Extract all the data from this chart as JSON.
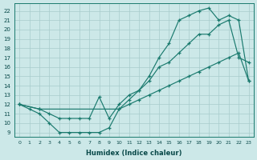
{
  "xlabel": "Humidex (Indice chaleur)",
  "xlim": [
    -0.5,
    23.5
  ],
  "ylim": [
    8.5,
    22.8
  ],
  "xticks": [
    0,
    1,
    2,
    3,
    4,
    5,
    6,
    7,
    8,
    9,
    10,
    11,
    12,
    13,
    14,
    15,
    16,
    17,
    18,
    19,
    20,
    21,
    22,
    23
  ],
  "yticks": [
    9,
    10,
    11,
    12,
    13,
    14,
    15,
    16,
    17,
    18,
    19,
    20,
    21,
    22
  ],
  "bg_color": "#cce8e8",
  "line_color": "#1a7a6e",
  "grid_color": "#a8cccc",
  "line1_x": [
    0,
    1,
    2,
    3,
    4,
    5,
    6,
    7,
    8,
    9,
    10,
    11,
    12,
    13,
    14,
    15,
    16,
    17,
    18,
    19,
    20,
    21,
    22,
    23
  ],
  "line1_y": [
    12.0,
    11.5,
    11.0,
    10.0,
    9.0,
    9.0,
    9.0,
    9.0,
    9.0,
    9.5,
    11.5,
    12.5,
    13.5,
    15.0,
    17.0,
    18.5,
    21.0,
    21.5,
    22.0,
    22.3,
    21.0,
    21.5,
    21.0,
    14.5
  ],
  "line2_x": [
    0,
    2,
    3,
    4,
    5,
    6,
    7,
    8,
    9,
    10,
    11,
    12,
    13,
    14,
    15,
    16,
    17,
    18,
    19,
    20,
    21,
    22,
    23
  ],
  "line2_y": [
    12.0,
    11.5,
    11.0,
    10.5,
    10.5,
    10.5,
    10.5,
    12.8,
    10.5,
    12.0,
    13.0,
    13.5,
    14.5,
    16.0,
    16.5,
    17.5,
    18.5,
    19.5,
    19.5,
    20.5,
    21.0,
    17.0,
    16.5
  ],
  "line3_x": [
    0,
    2,
    10,
    11,
    12,
    13,
    14,
    15,
    16,
    17,
    18,
    19,
    20,
    21,
    22,
    23
  ],
  "line3_y": [
    12.0,
    11.5,
    11.5,
    12.0,
    12.5,
    13.0,
    13.5,
    14.0,
    14.5,
    15.0,
    15.5,
    16.0,
    16.5,
    17.0,
    17.5,
    14.5
  ]
}
